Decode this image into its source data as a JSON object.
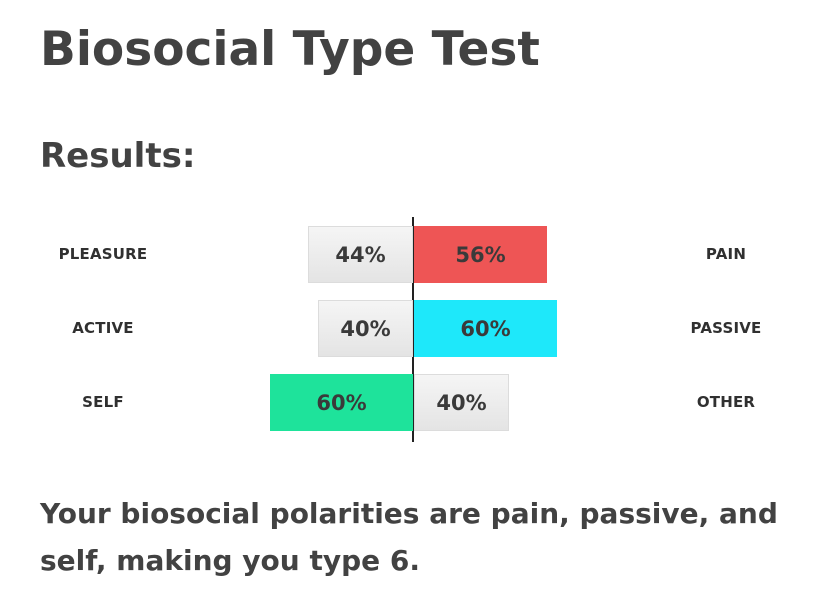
{
  "title": "Biosocial Type Test",
  "results_heading": "Results:",
  "rows": [
    {
      "left_label": "PLEASURE",
      "right_label": "PAIN",
      "left_percent": 44,
      "right_percent": 56,
      "left_text": "44%",
      "right_text": "56%",
      "dominant": "right",
      "dominant_color": "#ee5555"
    },
    {
      "left_label": "ACTIVE",
      "right_label": "PASSIVE",
      "left_percent": 40,
      "right_percent": 60,
      "left_text": "40%",
      "right_text": "60%",
      "dominant": "right",
      "dominant_color": "#1ee8fa"
    },
    {
      "left_label": "SELF",
      "right_label": "OTHER",
      "left_percent": 60,
      "right_percent": 40,
      "left_text": "60%",
      "right_text": "40%",
      "dominant": "left",
      "dominant_color": "#1ee39b"
    }
  ],
  "summary": "Your biosocial polarities are pain, passive, and self, making you type 6."
}
